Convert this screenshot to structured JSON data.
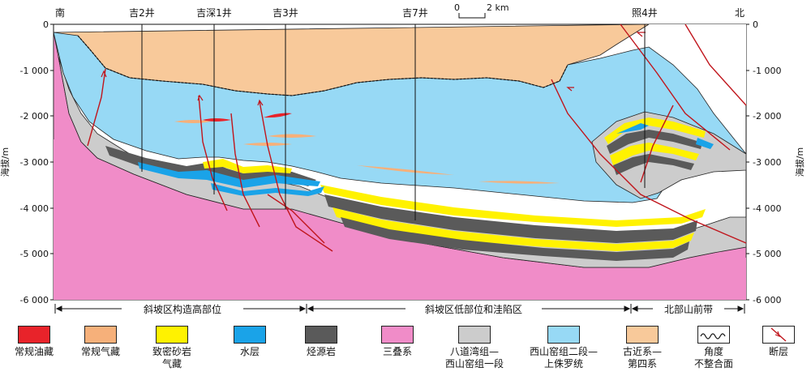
{
  "header": {
    "south": "南",
    "north": "北",
    "scale_zero": "0",
    "scale_km": "2 km"
  },
  "wells": [
    {
      "name": "吉2井"
    },
    {
      "name": "吉深1井"
    },
    {
      "name": "吉3井"
    },
    {
      "name": "吉7井"
    },
    {
      "name": "照4井"
    }
  ],
  "axis": {
    "ylabel": "海拔/m",
    "ticks": [
      "0",
      "-1 000",
      "-2 000",
      "-3 000",
      "-4 000",
      "-5 000",
      "-6 000"
    ],
    "ticks_right": [
      "0",
      "-1 000",
      "-2 000",
      "-3 000",
      "-4 000",
      "-5 000",
      "-6 000"
    ]
  },
  "zones": [
    {
      "label": "斜坡区构造高部位"
    },
    {
      "label": "斜坡区低部位和洼陷区"
    },
    {
      "label": "北部山前带"
    }
  ],
  "legend": [
    {
      "label": "常规油藏",
      "color": "#e8232a"
    },
    {
      "label": "常规气藏",
      "color": "#f6b07a"
    },
    {
      "label": "致密砂岩\n气藏",
      "color": "#fff200"
    },
    {
      "label": "水层",
      "color": "#1aa3e8"
    },
    {
      "label": "烃源岩",
      "color": "#5a5a5a"
    },
    {
      "label": "三叠系",
      "color": "#f08cc8"
    },
    {
      "label": "八道湾组—\n西山窑组一段",
      "color": "#cccccc"
    },
    {
      "label": "西山窑组二段—\n上侏罗统",
      "color": "#97d9f5"
    },
    {
      "label": "古近系—\n第四系",
      "color": "#f8c99a"
    },
    {
      "label": "角度\n不整合面",
      "color": "#ffffff"
    },
    {
      "label": "断层",
      "color": "#ffffff"
    }
  ]
}
